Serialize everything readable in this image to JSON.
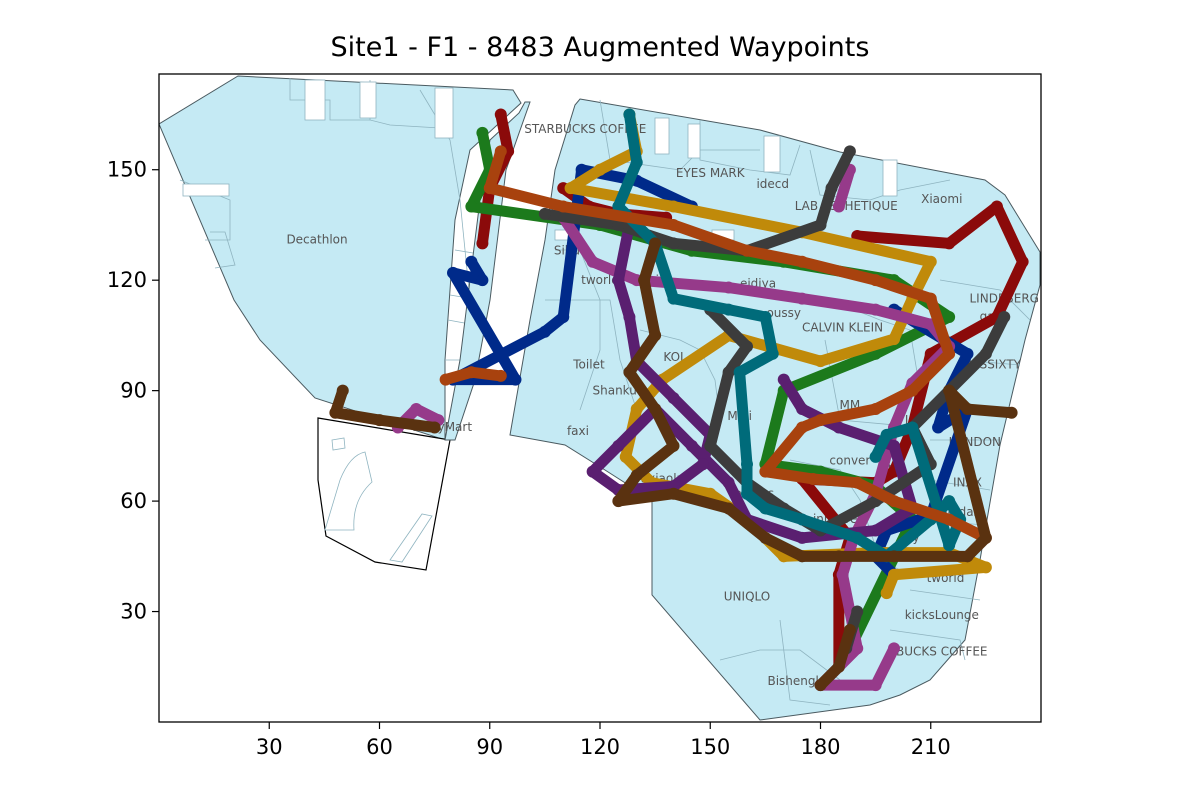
{
  "chart_data": {
    "type": "scatter",
    "title": "Site1 - F1 - 8483 Augmented Waypoints",
    "xlabel": "",
    "ylabel": "",
    "xlim": [
      0,
      240
    ],
    "ylim": [
      0,
      176
    ],
    "xticks": [
      30,
      60,
      90,
      120,
      150,
      180,
      210
    ],
    "yticks": [
      30,
      60,
      90,
      120,
      150
    ],
    "grid": false,
    "legend": "none",
    "background_floorplan": {
      "floor_color": "#c5eaf4",
      "outline_color": "#4a5a60",
      "regions": [
        {
          "name": "west-block",
          "points": [
            [
              0,
              162
            ],
            [
              35,
              176
            ],
            [
              88,
              176
            ],
            [
              88,
              170
            ],
            [
              95,
              158
            ],
            [
              95,
              120
            ],
            [
              90,
              105
            ],
            [
              85,
              82
            ],
            [
              68,
              84
            ],
            [
              40,
              88
            ],
            [
              20,
              115
            ]
          ]
        },
        {
          "name": "west-annex",
          "points": [
            [
              43,
              85
            ],
            [
              80,
              80
            ],
            [
              72,
              41
            ],
            [
              60,
              43
            ],
            [
              44,
              50
            ]
          ]
        },
        {
          "name": "main-block",
          "points": [
            [
              98,
              176
            ],
            [
              99,
              176
            ],
            [
              100,
              174
            ],
            [
              95,
              120
            ],
            [
              90,
              108
            ],
            [
              85,
              82
            ],
            [
              100,
              80
            ],
            [
              98,
              176
            ]
          ]
        },
        {
          "name": "east-block",
          "points": [
            [
              115,
              168
            ],
            [
              190,
              155
            ],
            [
              225,
              148
            ],
            [
              240,
              130
            ],
            [
              240,
              110
            ],
            [
              225,
              70
            ],
            [
              215,
              35
            ],
            [
              200,
              20
            ],
            [
              185,
              10
            ],
            [
              160,
              0
            ],
            [
              142,
              35
            ],
            [
              130,
              55
            ],
            [
              120,
              75
            ],
            [
              95,
              80
            ],
            [
              100,
              130
            ],
            [
              110,
              165
            ]
          ]
        }
      ],
      "store_labels": [
        {
          "text": "STARBUCKS COFFEE",
          "x": 116,
          "y": 160
        },
        {
          "text": "Decathlon",
          "x": 43,
          "y": 130
        },
        {
          "text": "EYES MARK",
          "x": 150,
          "y": 148
        },
        {
          "text": "idecd",
          "x": 167,
          "y": 145
        },
        {
          "text": "LAB ESTHETIQUE",
          "x": 187,
          "y": 139
        },
        {
          "text": "Xiaomi",
          "x": 213,
          "y": 141
        },
        {
          "text": "Sihu",
          "x": 111,
          "y": 127
        },
        {
          "text": "tworld",
          "x": 120,
          "y": 119
        },
        {
          "text": "omiao",
          "x": 135,
          "y": 119
        },
        {
          "text": "eidiya",
          "x": 163,
          "y": 118
        },
        {
          "text": "oussy",
          "x": 170,
          "y": 110
        },
        {
          "text": "LINDEBERG",
          "x": 230,
          "y": 114
        },
        {
          "text": "gant",
          "x": 227,
          "y": 109
        },
        {
          "text": "CALVIN KLEIN",
          "x": 186,
          "y": 106
        },
        {
          "text": "KOI",
          "x": 140,
          "y": 98
        },
        {
          "text": "Toilet",
          "x": 117,
          "y": 96
        },
        {
          "text": "MISSSIXTY",
          "x": 226,
          "y": 96
        },
        {
          "text": "Shanku",
          "x": 124,
          "y": 89
        },
        {
          "text": "MM",
          "x": 188,
          "y": 85
        },
        {
          "text": "Muji",
          "x": 158,
          "y": 82
        },
        {
          "text": "amilyMart",
          "x": 77,
          "y": 79
        },
        {
          "text": "faxi",
          "x": 114,
          "y": 78
        },
        {
          "text": "Lir",
          "x": 205,
          "y": 81
        },
        {
          "text": "LONDON",
          "x": 222,
          "y": 75
        },
        {
          "text": "conver",
          "x": 188,
          "y": 70
        },
        {
          "text": "ru",
          "x": 200,
          "y": 68
        },
        {
          "text": "axiaolu",
          "x": 137,
          "y": 65
        },
        {
          "text": "INXX",
          "x": 220,
          "y": 64
        },
        {
          "text": "adidas",
          "x": 162,
          "y": 61
        },
        {
          "text": "adidas",
          "x": 218,
          "y": 56
        },
        {
          "text": "innisfree",
          "x": 185,
          "y": 54
        },
        {
          "text": "ny",
          "x": 205,
          "y": 49
        },
        {
          "text": "tworld",
          "x": 214,
          "y": 38
        },
        {
          "text": "UNIQLO",
          "x": 160,
          "y": 33
        },
        {
          "text": "kicksLounge",
          "x": 213,
          "y": 28
        },
        {
          "text": "BUCKS COFFEE",
          "x": 213,
          "y": 18
        },
        {
          "text": "Bishengke",
          "x": 174,
          "y": 10
        }
      ]
    },
    "series": [
      {
        "color": "#8b0a0a",
        "points": [
          [
            93,
            165
          ],
          [
            95,
            155
          ],
          [
            90,
            145
          ],
          [
            88,
            130
          ],
          [
            138,
            137
          ],
          [
            125,
            138
          ],
          [
            117,
            140
          ],
          [
            110,
            145
          ],
          [
            190,
            132
          ],
          [
            215,
            130
          ],
          [
            228,
            140
          ],
          [
            235,
            125
          ],
          [
            228,
            110
          ],
          [
            210,
            100
          ],
          [
            205,
            80
          ],
          [
            200,
            68
          ],
          [
            195,
            65
          ],
          [
            175,
            66
          ],
          [
            188,
            50
          ],
          [
            185,
            40
          ],
          [
            185,
            15
          ]
        ]
      },
      {
        "color": "#1c7a1c",
        "points": [
          [
            88,
            160
          ],
          [
            90,
            150
          ],
          [
            85,
            140
          ],
          [
            120,
            135
          ],
          [
            145,
            128
          ],
          [
            170,
            125
          ],
          [
            200,
            120
          ],
          [
            215,
            110
          ],
          [
            195,
            100
          ],
          [
            170,
            90
          ],
          [
            165,
            70
          ],
          [
            180,
            68
          ],
          [
            195,
            64
          ],
          [
            205,
            55
          ],
          [
            188,
            20
          ]
        ]
      },
      {
        "color": "#002a8a",
        "points": [
          [
            85,
            125
          ],
          [
            88,
            120
          ],
          [
            80,
            122
          ],
          [
            97,
            93
          ],
          [
            80,
            93
          ],
          [
            105,
            106
          ],
          [
            110,
            110
          ],
          [
            115,
            150
          ],
          [
            130,
            147
          ],
          [
            145,
            140
          ],
          [
            200,
            112
          ],
          [
            220,
            100
          ],
          [
            215,
            90
          ],
          [
            212,
            80
          ],
          [
            220,
            85
          ],
          [
            210,
            56
          ],
          [
            198,
            52
          ],
          [
            195,
            45
          ],
          [
            200,
            40
          ]
        ]
      },
      {
        "color": "#c08a0a",
        "points": [
          [
            128,
            165
          ],
          [
            130,
            155
          ],
          [
            120,
            150
          ],
          [
            112,
            145
          ],
          [
            140,
            140
          ],
          [
            175,
            133
          ],
          [
            210,
            125
          ],
          [
            205,
            115
          ],
          [
            200,
            104
          ],
          [
            180,
            98
          ],
          [
            155,
            105
          ],
          [
            137,
            93
          ],
          [
            130,
            85
          ],
          [
            127,
            72
          ],
          [
            134,
            65
          ],
          [
            150,
            62
          ],
          [
            160,
            55
          ],
          [
            170,
            45
          ],
          [
            195,
            46
          ],
          [
            215,
            46
          ],
          [
            225,
            42
          ],
          [
            200,
            40
          ],
          [
            198,
            35
          ]
        ]
      },
      {
        "color": "#963a8a",
        "points": [
          [
            188,
            150
          ],
          [
            185,
            140
          ],
          [
            110,
            137
          ],
          [
            118,
            125
          ],
          [
            130,
            120
          ],
          [
            155,
            118
          ],
          [
            175,
            115
          ],
          [
            195,
            112
          ],
          [
            210,
            108
          ],
          [
            215,
            102
          ],
          [
            205,
            92
          ],
          [
            200,
            80
          ],
          [
            195,
            62
          ],
          [
            189,
            50
          ],
          [
            186,
            40
          ],
          [
            190,
            20
          ],
          [
            180,
            10
          ],
          [
            195,
            10
          ],
          [
            200,
            20
          ],
          [
            76,
            82
          ],
          [
            70,
            85
          ],
          [
            65,
            80
          ]
        ]
      },
      {
        "color": "#5a1f70",
        "points": [
          [
            128,
            135
          ],
          [
            125,
            120
          ],
          [
            128,
            110
          ],
          [
            130,
            98
          ],
          [
            140,
            88
          ],
          [
            150,
            78
          ],
          [
            148,
            70
          ],
          [
            140,
            64
          ],
          [
            125,
            63
          ],
          [
            118,
            68
          ],
          [
            125,
            75
          ],
          [
            135,
            85
          ],
          [
            145,
            75
          ],
          [
            155,
            65
          ],
          [
            160,
            55
          ],
          [
            175,
            50
          ],
          [
            195,
            52
          ],
          [
            205,
            58
          ],
          [
            200,
            75
          ],
          [
            185,
            80
          ],
          [
            175,
            85
          ],
          [
            170,
            93
          ]
        ]
      },
      {
        "color": "#3c3c3c",
        "points": [
          [
            188,
            155
          ],
          [
            183,
            145
          ],
          [
            180,
            135
          ],
          [
            160,
            128
          ],
          [
            140,
            130
          ],
          [
            125,
            135
          ],
          [
            105,
            138
          ],
          [
            150,
            112
          ],
          [
            160,
            102
          ],
          [
            155,
            95
          ],
          [
            150,
            75
          ],
          [
            160,
            65
          ],
          [
            170,
            58
          ],
          [
            180,
            52
          ],
          [
            195,
            60
          ],
          [
            210,
            70
          ],
          [
            205,
            80
          ],
          [
            215,
            90
          ],
          [
            225,
            100
          ],
          [
            230,
            110
          ],
          [
            190,
            30
          ],
          [
            187,
            20
          ]
        ]
      },
      {
        "color": "#006b7a",
        "points": [
          [
            128,
            165
          ],
          [
            130,
            152
          ],
          [
            125,
            140
          ],
          [
            135,
            130
          ],
          [
            140,
            115
          ],
          [
            155,
            112
          ],
          [
            165,
            110
          ],
          [
            167,
            100
          ],
          [
            158,
            95
          ],
          [
            160,
            70
          ],
          [
            160,
            62
          ],
          [
            165,
            58
          ],
          [
            175,
            55
          ],
          [
            190,
            50
          ],
          [
            198,
            45
          ],
          [
            210,
            55
          ],
          [
            215,
            60
          ],
          [
            218,
            55
          ],
          [
            215,
            48
          ],
          [
            205,
            80
          ],
          [
            198,
            78
          ],
          [
            195,
            72
          ]
        ]
      },
      {
        "color": "#a8420e",
        "points": [
          [
            93,
            155
          ],
          [
            90,
            145
          ],
          [
            110,
            140
          ],
          [
            140,
            135
          ],
          [
            160,
            128
          ],
          [
            175,
            125
          ],
          [
            195,
            120
          ],
          [
            210,
            115
          ],
          [
            215,
            100
          ],
          [
            205,
            90
          ],
          [
            195,
            85
          ],
          [
            180,
            82
          ],
          [
            175,
            80
          ],
          [
            165,
            68
          ],
          [
            178,
            66
          ],
          [
            190,
            65
          ],
          [
            200,
            60
          ],
          [
            215,
            55
          ],
          [
            225,
            50
          ],
          [
            93,
            94
          ],
          [
            85,
            95
          ],
          [
            78,
            93
          ]
        ]
      },
      {
        "color": "#5a3210",
        "points": [
          [
            135,
            130
          ],
          [
            132,
            120
          ],
          [
            135,
            105
          ],
          [
            128,
            95
          ],
          [
            135,
            85
          ],
          [
            140,
            75
          ],
          [
            130,
            67
          ],
          [
            125,
            60
          ],
          [
            140,
            62
          ],
          [
            155,
            58
          ],
          [
            165,
            50
          ],
          [
            175,
            45
          ],
          [
            185,
            45
          ],
          [
            200,
            45
          ],
          [
            220,
            45
          ],
          [
            225,
            50
          ],
          [
            215,
            90
          ],
          [
            220,
            85
          ],
          [
            232,
            84
          ],
          [
            50,
            90
          ],
          [
            48,
            84
          ],
          [
            60,
            82
          ],
          [
            75,
            80
          ],
          [
            188,
            25
          ],
          [
            185,
            15
          ],
          [
            180,
            10
          ]
        ]
      }
    ]
  }
}
